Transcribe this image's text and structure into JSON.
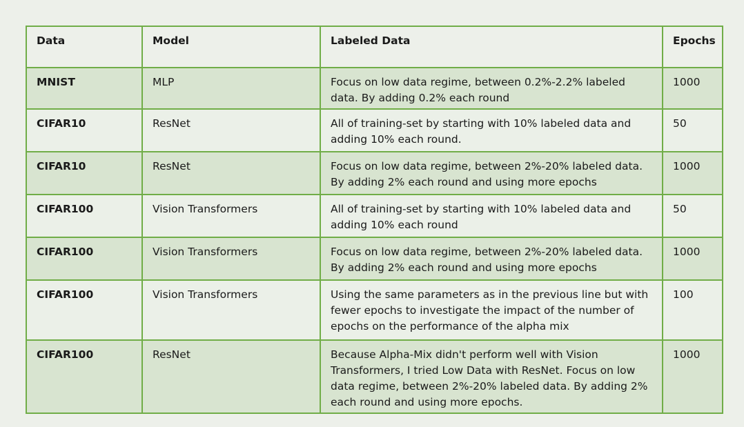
{
  "table": {
    "headers": [
      "Data",
      "Model",
      "Labeled Data",
      "Epochs"
    ],
    "rows": [
      {
        "data": "MNIST",
        "model": "MLP",
        "labeled": "Focus on low data regime, between 0.2%-2.2% labeled data. By adding 0.2% each round",
        "epochs": "1000"
      },
      {
        "data": "CIFAR10",
        "model": "ResNet",
        "labeled": "All of training-set by starting with 10% labeled data and adding 10% each round.",
        "epochs": "50"
      },
      {
        "data": "CIFAR10",
        "model": "ResNet",
        "labeled": "Focus on low data regime, between 2%-20% labeled data. By adding 2% each round and using more epochs",
        "epochs": "1000"
      },
      {
        "data": "CIFAR100",
        "model": "Vision Transformers",
        "labeled": "All of training-set by starting with 10% labeled data and adding 10% each round",
        "epochs": "50"
      },
      {
        "data": "CIFAR100",
        "model": "Vision Transformers",
        "labeled": "Focus on low data regime, between 2%-20% labeled data. By adding 2% each round and using more epochs",
        "epochs": "1000"
      },
      {
        "data": "CIFAR100",
        "model": "Vision Transformers",
        "labeled": "Using the same parameters as in the previous line but with fewer epochs to investigate the impact of the number of epochs on the performance of the alpha mix",
        "epochs": "100"
      },
      {
        "data": "CIFAR100",
        "model": "ResNet",
        "labeled": "Because Alpha-Mix didn't perform well with Vision Transformers, I tried Low Data with ResNet. Focus on low data regime, between 2%-20% labeled data. By adding 2% each round and using more epochs.",
        "epochs": "1000"
      }
    ]
  },
  "colors": {
    "border": "#70ad47",
    "row_shade": "#d8e4d0",
    "row_light": "#ebf0e8",
    "page_bg": "#edf0ea"
  }
}
